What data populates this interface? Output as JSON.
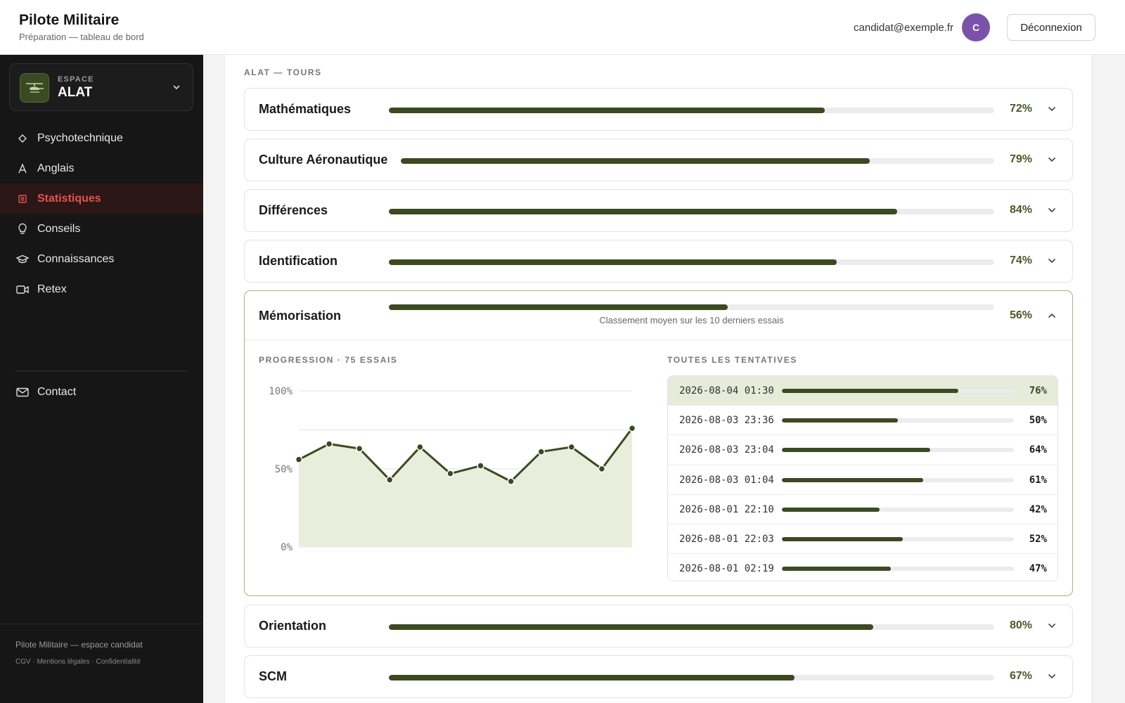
{
  "header": {
    "title": "Pilote Militaire",
    "subtitle": "Préparation — tableau de bord",
    "email": "candidat@exemple.fr",
    "avatar_initial": "C",
    "logout_label": "Déconnexion"
  },
  "sidebar": {
    "space_label": "ESPACE",
    "space_name": "ALAT",
    "items": [
      {
        "label": "Psychotechnique",
        "icon": "diamond-icon"
      },
      {
        "label": "Anglais",
        "icon": "letter-a-icon"
      },
      {
        "label": "Statistiques",
        "icon": "chart-list-icon",
        "active": true
      },
      {
        "label": "Conseils",
        "icon": "lightbulb-icon"
      },
      {
        "label": "Connaissances",
        "icon": "graduation-cap-icon"
      },
      {
        "label": "Retex",
        "icon": "video-camera-icon"
      }
    ],
    "contact": {
      "label": "Contact",
      "icon": "mail-icon"
    },
    "footer_title": "Pilote Militaire — espace candidat",
    "footer_links": [
      "CGV",
      "Mentions légales",
      "Confidentialité"
    ]
  },
  "main": {
    "section_title": "ALAT — TOURS",
    "subjects": [
      {
        "name": "Mathématiques",
        "pct_label": "72%",
        "value": 72
      },
      {
        "name": "Culture Aéronautique",
        "pct_label": "79%",
        "value": 79
      },
      {
        "name": "Différences",
        "pct_label": "84%",
        "value": 84
      },
      {
        "name": "Identification",
        "pct_label": "74%",
        "value": 74
      }
    ],
    "open_subject": {
      "name": "Mémorisation",
      "pct_label": "56%",
      "value": 56,
      "caption": "Classement moyen sur les 10 derniers essais",
      "chart_title": "PROGRESSION · 75 ESSAIS",
      "attempts_title": "TOUTES LES TENTATIVES",
      "attempts": [
        {
          "date": "2026-08-04 01:30",
          "pct_label": "76%",
          "value": 76,
          "highlight": true
        },
        {
          "date": "2026-08-03 23:36",
          "pct_label": "50%",
          "value": 50
        },
        {
          "date": "2026-08-03 23:04",
          "pct_label": "64%",
          "value": 64
        },
        {
          "date": "2026-08-03 01:04",
          "pct_label": "61%",
          "value": 61
        },
        {
          "date": "2026-08-01 22:10",
          "pct_label": "42%",
          "value": 42
        },
        {
          "date": "2026-08-01 22:03",
          "pct_label": "52%",
          "value": 52
        },
        {
          "date": "2026-08-01 02:19",
          "pct_label": "47%",
          "value": 47
        }
      ]
    },
    "subjects_after": [
      {
        "name": "Orientation",
        "pct_label": "80%",
        "value": 80
      },
      {
        "name": "SCM",
        "pct_label": "67%",
        "value": 67
      }
    ]
  },
  "chart_data": {
    "type": "area",
    "title": "",
    "xlabel": "",
    "ylabel": "",
    "ylim": [
      0,
      100
    ],
    "yticks": [
      "0%",
      "50%",
      "100%"
    ],
    "grid": true,
    "series": [
      {
        "values": [
          56,
          66,
          63,
          43,
          64,
          47,
          52,
          42,
          61,
          64,
          50,
          76
        ]
      }
    ],
    "colors": {
      "line": "#3c4a1f",
      "fill": "#e9eddc",
      "grid": "#e2e2e2"
    }
  }
}
